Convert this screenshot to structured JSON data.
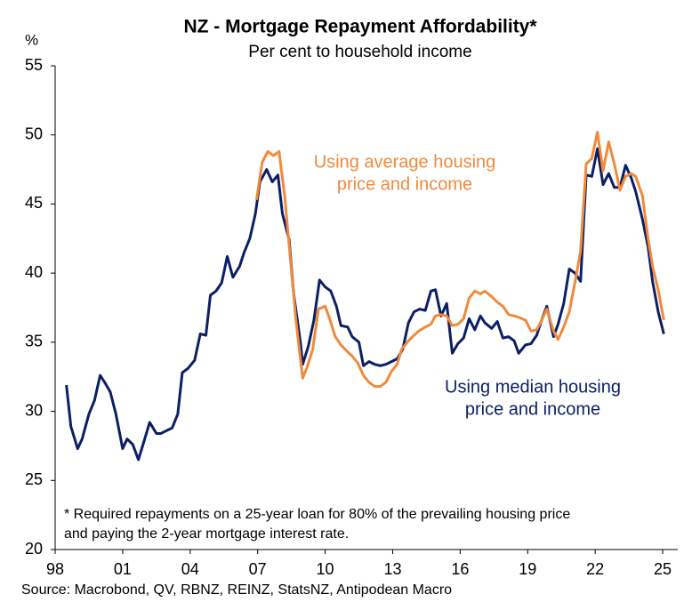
{
  "chart_data": {
    "type": "line",
    "title": "NZ - Mortgage Repayment Affordability*",
    "subtitle": "Per cent to household income",
    "y_label": "%",
    "source": "Source: Macrobond, QV, RBNZ, REINZ, StatsNZ, Antipodean Macro",
    "footnote": [
      "* Required repayments on a 25-year loan for 80% of the prevailing housing price",
      "and paying the 2-year mortgage interest rate."
    ],
    "xlim": [
      1998,
      2025.67
    ],
    "xticks": [
      {
        "value": 1998,
        "label": "98"
      },
      {
        "value": 2001,
        "label": "01"
      },
      {
        "value": 2004,
        "label": "04"
      },
      {
        "value": 2007,
        "label": "07"
      },
      {
        "value": 2010,
        "label": "10"
      },
      {
        "value": 2013,
        "label": "13"
      },
      {
        "value": 2016,
        "label": "16"
      },
      {
        "value": 2019,
        "label": "19"
      },
      {
        "value": 2022,
        "label": "22"
      },
      {
        "value": 2025,
        "label": "25"
      }
    ],
    "ylim": [
      20,
      55
    ],
    "yticks": [
      20,
      25,
      30,
      35,
      40,
      45,
      50,
      55
    ],
    "series": [
      {
        "name": "Using median housing price and income",
        "label_lines": [
          "Using median housing",
          "price and income"
        ],
        "color": "#0b1f65",
        "x": [
          1998.5,
          1998.7,
          1999.0,
          1999.2,
          1999.5,
          1999.75,
          2000.0,
          2000.2,
          2000.45,
          2000.7,
          2001.0,
          2001.2,
          2001.45,
          2001.7,
          2002.0,
          2002.2,
          2002.5,
          2002.7,
          2002.95,
          2003.2,
          2003.45,
          2003.65,
          2003.9,
          2004.2,
          2004.45,
          2004.7,
          2004.9,
          2005.15,
          2005.4,
          2005.65,
          2005.9,
          2006.2,
          2006.4,
          2006.65,
          2006.9,
          2007.1,
          2007.4,
          2007.65,
          2007.9,
          2008.1,
          2008.4,
          2008.6,
          2008.9,
          2009.0,
          2009.25,
          2009.5,
          2009.75,
          2010.0,
          2010.25,
          2010.5,
          2010.7,
          2011.0,
          2011.2,
          2011.5,
          2011.7,
          2011.95,
          2012.2,
          2012.45,
          2012.7,
          2012.95,
          2013.2,
          2013.45,
          2013.7,
          2013.95,
          2014.2,
          2014.45,
          2014.7,
          2014.9,
          2015.15,
          2015.4,
          2015.65,
          2015.9,
          2016.15,
          2016.4,
          2016.65,
          2016.9,
          2017.1,
          2017.4,
          2017.65,
          2017.9,
          2018.15,
          2018.4,
          2018.6,
          2018.9,
          2019.15,
          2019.4,
          2019.6,
          2019.85,
          2020.15,
          2020.35,
          2020.6,
          2020.85,
          2021.1,
          2021.35,
          2021.6,
          2021.85,
          2022.1,
          2022.35,
          2022.6,
          2022.85,
          2023.1,
          2023.35,
          2023.6,
          2023.8,
          2024.1,
          2024.35,
          2024.55,
          2024.8,
          2025.05
        ],
        "values": [
          31.9,
          28.9,
          27.3,
          28.0,
          29.8,
          30.8,
          32.6,
          32.1,
          31.4,
          29.8,
          27.3,
          28.0,
          27.6,
          26.5,
          28.1,
          29.2,
          28.4,
          28.4,
          28.6,
          28.8,
          29.8,
          32.8,
          33.1,
          33.7,
          35.6,
          35.5,
          38.4,
          38.7,
          39.3,
          41.2,
          39.7,
          40.5,
          41.5,
          42.5,
          44.3,
          46.6,
          47.5,
          46.6,
          47.1,
          44.3,
          42.4,
          38.5,
          35.0,
          33.4,
          34.7,
          36.6,
          39.5,
          39.0,
          38.7,
          37.6,
          36.2,
          36.1,
          35.4,
          35.0,
          33.3,
          33.6,
          33.4,
          33.3,
          33.4,
          33.6,
          33.8,
          34.5,
          36.4,
          37.2,
          37.4,
          37.3,
          38.7,
          38.8,
          36.9,
          37.8,
          34.2,
          34.9,
          35.3,
          36.7,
          35.9,
          36.9,
          36.4,
          36.0,
          36.5,
          35.3,
          35.4,
          35.1,
          34.2,
          34.8,
          34.9,
          35.5,
          36.5,
          37.6,
          35.4,
          36.3,
          37.8,
          40.3,
          40.0,
          39.4,
          47.1,
          47.0,
          49.0,
          46.4,
          47.2,
          46.2,
          46.2,
          47.8,
          46.9,
          45.9,
          43.9,
          41.9,
          39.4,
          37.2,
          35.6
        ]
      },
      {
        "name": "Using average housing price and income",
        "label_lines": [
          "Using average housing",
          "price and income"
        ],
        "color": "#f08a3c",
        "x": [
          2006.95,
          2007.2,
          2007.45,
          2007.7,
          2007.95,
          2008.2,
          2008.45,
          2008.7,
          2009.0,
          2009.2,
          2009.45,
          2009.7,
          2010.0,
          2010.2,
          2010.45,
          2010.7,
          2011.0,
          2011.2,
          2011.45,
          2011.7,
          2011.95,
          2012.2,
          2012.45,
          2012.7,
          2012.95,
          2013.2,
          2013.4,
          2013.7,
          2013.95,
          2014.15,
          2014.45,
          2014.7,
          2014.9,
          2015.15,
          2015.4,
          2015.65,
          2015.9,
          2016.15,
          2016.4,
          2016.65,
          2016.9,
          2017.1,
          2017.4,
          2017.65,
          2017.9,
          2018.15,
          2018.4,
          2018.6,
          2018.9,
          2019.15,
          2019.4,
          2019.6,
          2019.85,
          2020.15,
          2020.35,
          2020.6,
          2020.85,
          2021.1,
          2021.35,
          2021.6,
          2021.85,
          2022.1,
          2022.35,
          2022.6,
          2022.85,
          2023.1,
          2023.35,
          2023.6,
          2023.8,
          2024.1,
          2024.35,
          2024.55,
          2024.8,
          2025.05
        ],
        "values": [
          45.3,
          48.0,
          48.8,
          48.5,
          48.8,
          45.6,
          41.1,
          36.6,
          32.4,
          33.2,
          34.5,
          37.4,
          37.6,
          36.7,
          35.4,
          34.8,
          34.3,
          34.0,
          33.5,
          32.6,
          32.1,
          31.8,
          31.8,
          32.1,
          32.9,
          33.4,
          34.5,
          35.1,
          35.5,
          35.8,
          36.1,
          36.3,
          36.9,
          37.0,
          36.9,
          36.2,
          36.3,
          36.7,
          38.2,
          38.7,
          38.5,
          38.7,
          38.3,
          37.9,
          37.6,
          37.0,
          36.9,
          36.8,
          36.6,
          35.8,
          35.9,
          36.5,
          37.4,
          35.8,
          35.2,
          36.1,
          37.2,
          39.3,
          41.6,
          47.9,
          48.3,
          50.2,
          47.4,
          49.5,
          47.9,
          46.0,
          47.0,
          47.2,
          47.0,
          45.6,
          42.5,
          40.5,
          38.8,
          36.6
        ]
      }
    ]
  }
}
